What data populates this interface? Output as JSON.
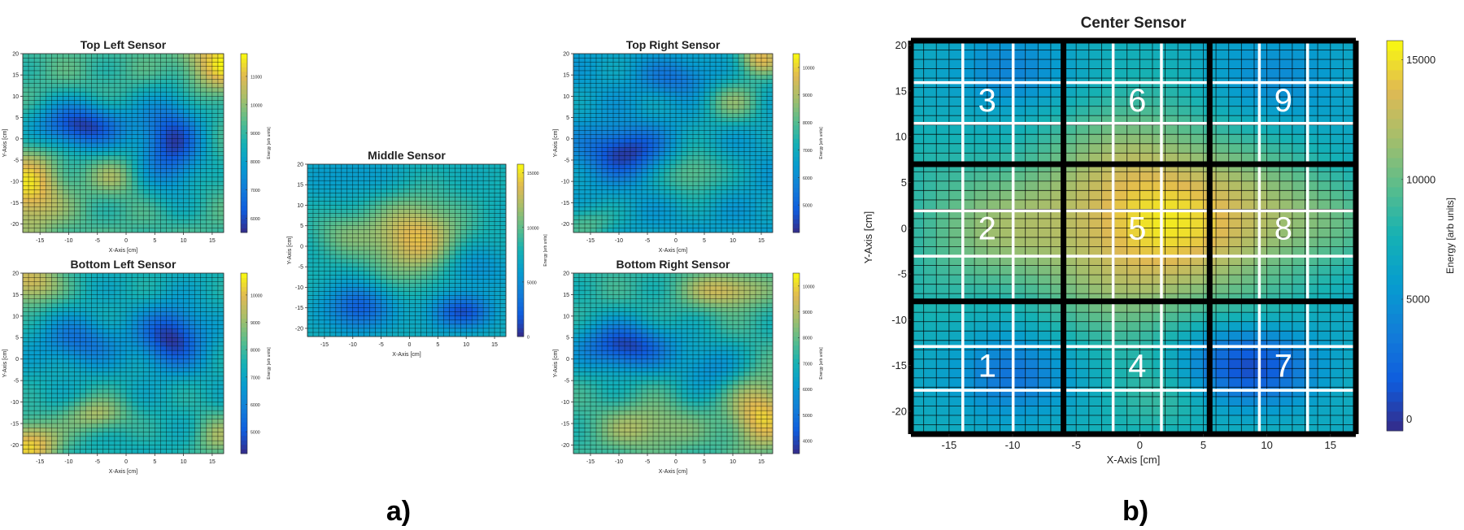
{
  "colormap": "parula",
  "panel_labels": [
    "a)",
    "b)"
  ],
  "chart_data": [
    {
      "id": "tl",
      "type": "heatmap",
      "title": "Top Left Sensor",
      "xlabel": "X-Axis [cm]",
      "ylabel": "Y-Axis [cm]",
      "cbar_label": "Energy [arb units]",
      "xlim": [
        -18,
        17
      ],
      "ylim": [
        -22,
        20
      ],
      "xticks": [
        -15,
        -10,
        -5,
        0,
        5,
        10,
        15
      ],
      "yticks": [
        -20,
        -15,
        -10,
        -5,
        0,
        5,
        10,
        15,
        20
      ],
      "cbar_range": [
        5500,
        11800
      ],
      "cbar_ticks": [
        6000,
        7000,
        8000,
        9000,
        10000,
        11000
      ],
      "base": 9200,
      "blobs": [
        {
          "x": -8,
          "y": 3,
          "sx": 6,
          "sy": 4,
          "a": -3400
        },
        {
          "x": 8,
          "y": -1,
          "sx": 4,
          "sy": 8,
          "a": -3200
        },
        {
          "x": -17,
          "y": -12,
          "sx": 4,
          "sy": 7,
          "a": 2200
        },
        {
          "x": 17,
          "y": 18,
          "sx": 5,
          "sy": 5,
          "a": 2300
        },
        {
          "x": -2,
          "y": -9,
          "sx": 3,
          "sy": 3,
          "a": 900
        }
      ]
    },
    {
      "id": "bl",
      "type": "heatmap",
      "title": "Bottom Left Sensor",
      "xlabel": "X-Axis [cm]",
      "ylabel": "Y-Axis [cm]",
      "cbar_label": "Energy [arb units]",
      "xlim": [
        -18,
        17
      ],
      "ylim": [
        -22,
        20
      ],
      "xticks": [
        -15,
        -10,
        -5,
        0,
        5,
        10,
        15
      ],
      "yticks": [
        -20,
        -15,
        -10,
        -5,
        0,
        5,
        10,
        15,
        20
      ],
      "cbar_range": [
        4200,
        10800
      ],
      "cbar_ticks": [
        5000,
        6000,
        7000,
        8000,
        9000,
        10000
      ],
      "base": 7400,
      "blobs": [
        {
          "x": 8,
          "y": 5,
          "sx": 4,
          "sy": 5,
          "a": -3000
        },
        {
          "x": -8,
          "y": 4,
          "sx": 5,
          "sy": 4,
          "a": -1800
        },
        {
          "x": -17,
          "y": 18,
          "sx": 4,
          "sy": 4,
          "a": 2600
        },
        {
          "x": -17,
          "y": -20,
          "sx": 4,
          "sy": 4,
          "a": 3000
        },
        {
          "x": -5,
          "y": -13,
          "sx": 4,
          "sy": 3,
          "a": 1800
        },
        {
          "x": 16,
          "y": -18,
          "sx": 3,
          "sy": 4,
          "a": 1600
        }
      ]
    },
    {
      "id": "mid",
      "type": "heatmap",
      "title": "Middle Sensor",
      "xlabel": "X-Axis [cm]",
      "ylabel": "Y-Axis [cm]",
      "cbar_label": "Energy [arb units]",
      "xlim": [
        -18,
        17
      ],
      "ylim": [
        -22,
        20
      ],
      "xticks": [
        -15,
        -10,
        -5,
        0,
        5,
        10,
        15
      ],
      "yticks": [
        -20,
        -15,
        -10,
        -5,
        0,
        5,
        10,
        15,
        20
      ],
      "cbar_range": [
        0,
        15800
      ],
      "cbar_ticks": [
        0,
        5000,
        10000,
        15000
      ],
      "base": 7500,
      "blobs": [
        {
          "x": 1,
          "y": 2,
          "sx": 6,
          "sy": 7,
          "a": 6500
        },
        {
          "x": -12,
          "y": 3,
          "sx": 4,
          "sy": 4,
          "a": 2500
        },
        {
          "x": -9,
          "y": -15,
          "sx": 4,
          "sy": 4,
          "a": -5500
        },
        {
          "x": 9,
          "y": -16,
          "sx": 4,
          "sy": 3,
          "a": -5800
        },
        {
          "x": 11,
          "y": -5,
          "sx": 4,
          "sy": 4,
          "a": -3000
        },
        {
          "x": -10,
          "y": 17,
          "sx": 6,
          "sy": 4,
          "a": -1800
        }
      ]
    },
    {
      "id": "tr",
      "type": "heatmap",
      "title": "Top Right Sensor",
      "xlabel": "X-Axis [cm]",
      "ylabel": "Y-Axis [cm]",
      "cbar_label": "Energy [arb units]",
      "xlim": [
        -18,
        17
      ],
      "ylim": [
        -22,
        20
      ],
      "xticks": [
        -15,
        -10,
        -5,
        0,
        5,
        10,
        15
      ],
      "yticks": [
        -20,
        -15,
        -10,
        -5,
        0,
        5,
        10,
        15,
        20
      ],
      "cbar_range": [
        4000,
        10500
      ],
      "cbar_ticks": [
        5000,
        6000,
        7000,
        8000,
        9000,
        10000
      ],
      "base": 6600,
      "blobs": [
        {
          "x": -9,
          "y": -3,
          "sx": 5,
          "sy": 4,
          "a": -2400
        },
        {
          "x": 1,
          "y": 14,
          "sx": 5,
          "sy": 3,
          "a": -1200
        },
        {
          "x": 15,
          "y": 19,
          "sx": 3,
          "sy": 3,
          "a": 3000
        },
        {
          "x": 10,
          "y": 9,
          "sx": 4,
          "sy": 4,
          "a": 1800
        },
        {
          "x": 3,
          "y": -8,
          "sx": 4,
          "sy": 4,
          "a": 1800
        },
        {
          "x": -16,
          "y": -20,
          "sx": 4,
          "sy": 3,
          "a": 1400
        }
      ]
    },
    {
      "id": "br",
      "type": "heatmap",
      "title": "Bottom Right Sensor",
      "xlabel": "X-Axis [cm]",
      "ylabel": "Y-Axis [cm]",
      "cbar_label": "Energy [arb units]",
      "xlim": [
        -18,
        17
      ],
      "ylim": [
        -22,
        20
      ],
      "xticks": [
        -15,
        -10,
        -5,
        0,
        5,
        10,
        15
      ],
      "yticks": [
        -20,
        -15,
        -10,
        -5,
        0,
        5,
        10,
        15,
        20
      ],
      "cbar_range": [
        3500,
        10500
      ],
      "cbar_ticks": [
        4000,
        5000,
        6000,
        7000,
        8000,
        9000,
        10000
      ],
      "base": 7300,
      "blobs": [
        {
          "x": -9,
          "y": 3,
          "sx": 6,
          "sy": 4,
          "a": -3400
        },
        {
          "x": 9,
          "y": 16,
          "sx": 5,
          "sy": 3,
          "a": 2200
        },
        {
          "x": 15,
          "y": -13,
          "sx": 4,
          "sy": 6,
          "a": 2600
        },
        {
          "x": -5,
          "y": -16,
          "sx": 6,
          "sy": 4,
          "a": 1600
        },
        {
          "x": 6,
          "y": -2,
          "sx": 4,
          "sy": 4,
          "a": -1500
        }
      ]
    },
    {
      "id": "center",
      "type": "heatmap",
      "title": "Center Sensor",
      "xlabel": "X-Axis [cm]",
      "ylabel": "Y-Axis [cm]",
      "cbar_label": "Energy [arb units]",
      "xlim": [
        -18,
        17
      ],
      "ylim": [
        -22.5,
        20.5
      ],
      "xticks": [
        -15,
        -10,
        -5,
        0,
        5,
        10,
        15
      ],
      "yticks": [
        -20,
        -15,
        -10,
        -5,
        0,
        5,
        10,
        15,
        20
      ],
      "cbar_range": [
        -500,
        15800
      ],
      "cbar_ticks": [
        0,
        5000,
        10000,
        15000
      ],
      "base": 7000,
      "blobs": [
        {
          "x": 1,
          "y": 1,
          "sx": 6,
          "sy": 8,
          "a": 7600
        },
        {
          "x": -12,
          "y": 0,
          "sx": 5,
          "sy": 5,
          "a": 3400
        },
        {
          "x": 12,
          "y": 1,
          "sx": 5,
          "sy": 4,
          "a": 3200
        },
        {
          "x": -10,
          "y": -16,
          "sx": 3,
          "sy": 3,
          "a": -4500
        },
        {
          "x": 8,
          "y": -15,
          "sx": 4,
          "sy": 3,
          "a": -6500
        },
        {
          "x": -10,
          "y": 17,
          "sx": 3,
          "sy": 3,
          "a": -3500
        },
        {
          "x": 10,
          "y": 16,
          "sx": 5,
          "sy": 4,
          "a": -2500
        },
        {
          "x": 2,
          "y": -18,
          "sx": 3,
          "sy": 3,
          "a": 2000
        }
      ],
      "regions": [
        "1",
        "2",
        "3",
        "4",
        "5",
        "6",
        "7",
        "8",
        "9"
      ]
    }
  ]
}
